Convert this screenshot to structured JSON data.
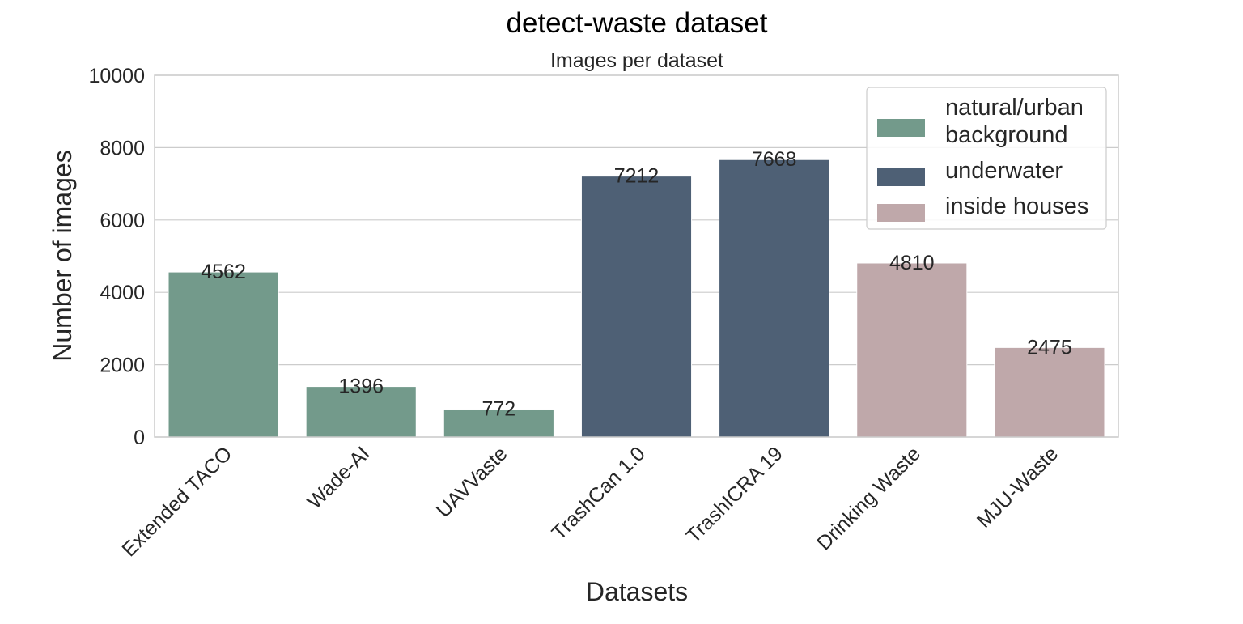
{
  "chart_data": {
    "type": "bar",
    "title": "detect-waste dataset",
    "subtitle": "Images per dataset",
    "xlabel": "Datasets",
    "ylabel": "Number of images",
    "ylim": [
      0,
      10000
    ],
    "yticks": [
      0,
      2000,
      4000,
      6000,
      8000,
      10000
    ],
    "grid": true,
    "legend_position": "top-right",
    "categories": [
      "Extended TACO",
      "Wade-AI",
      "UAVVaste",
      "TrashCan 1.0",
      "TrashICRA 19",
      "Drinking Waste",
      "MJU-Waste"
    ],
    "values": [
      4562,
      1396,
      772,
      7212,
      7668,
      4810,
      2475
    ],
    "groups": [
      "natural/urban background",
      "natural/urban background",
      "natural/urban background",
      "underwater",
      "underwater",
      "inside houses",
      "inside houses"
    ],
    "legend": [
      {
        "name": "natural/urban background",
        "lines": [
          "natural/urban",
          "background"
        ],
        "color": "#739a8b"
      },
      {
        "name": "underwater",
        "lines": [
          "underwater"
        ],
        "color": "#4e6075"
      },
      {
        "name": "inside houses",
        "lines": [
          "inside houses"
        ],
        "color": "#bfa8aa"
      }
    ]
  }
}
